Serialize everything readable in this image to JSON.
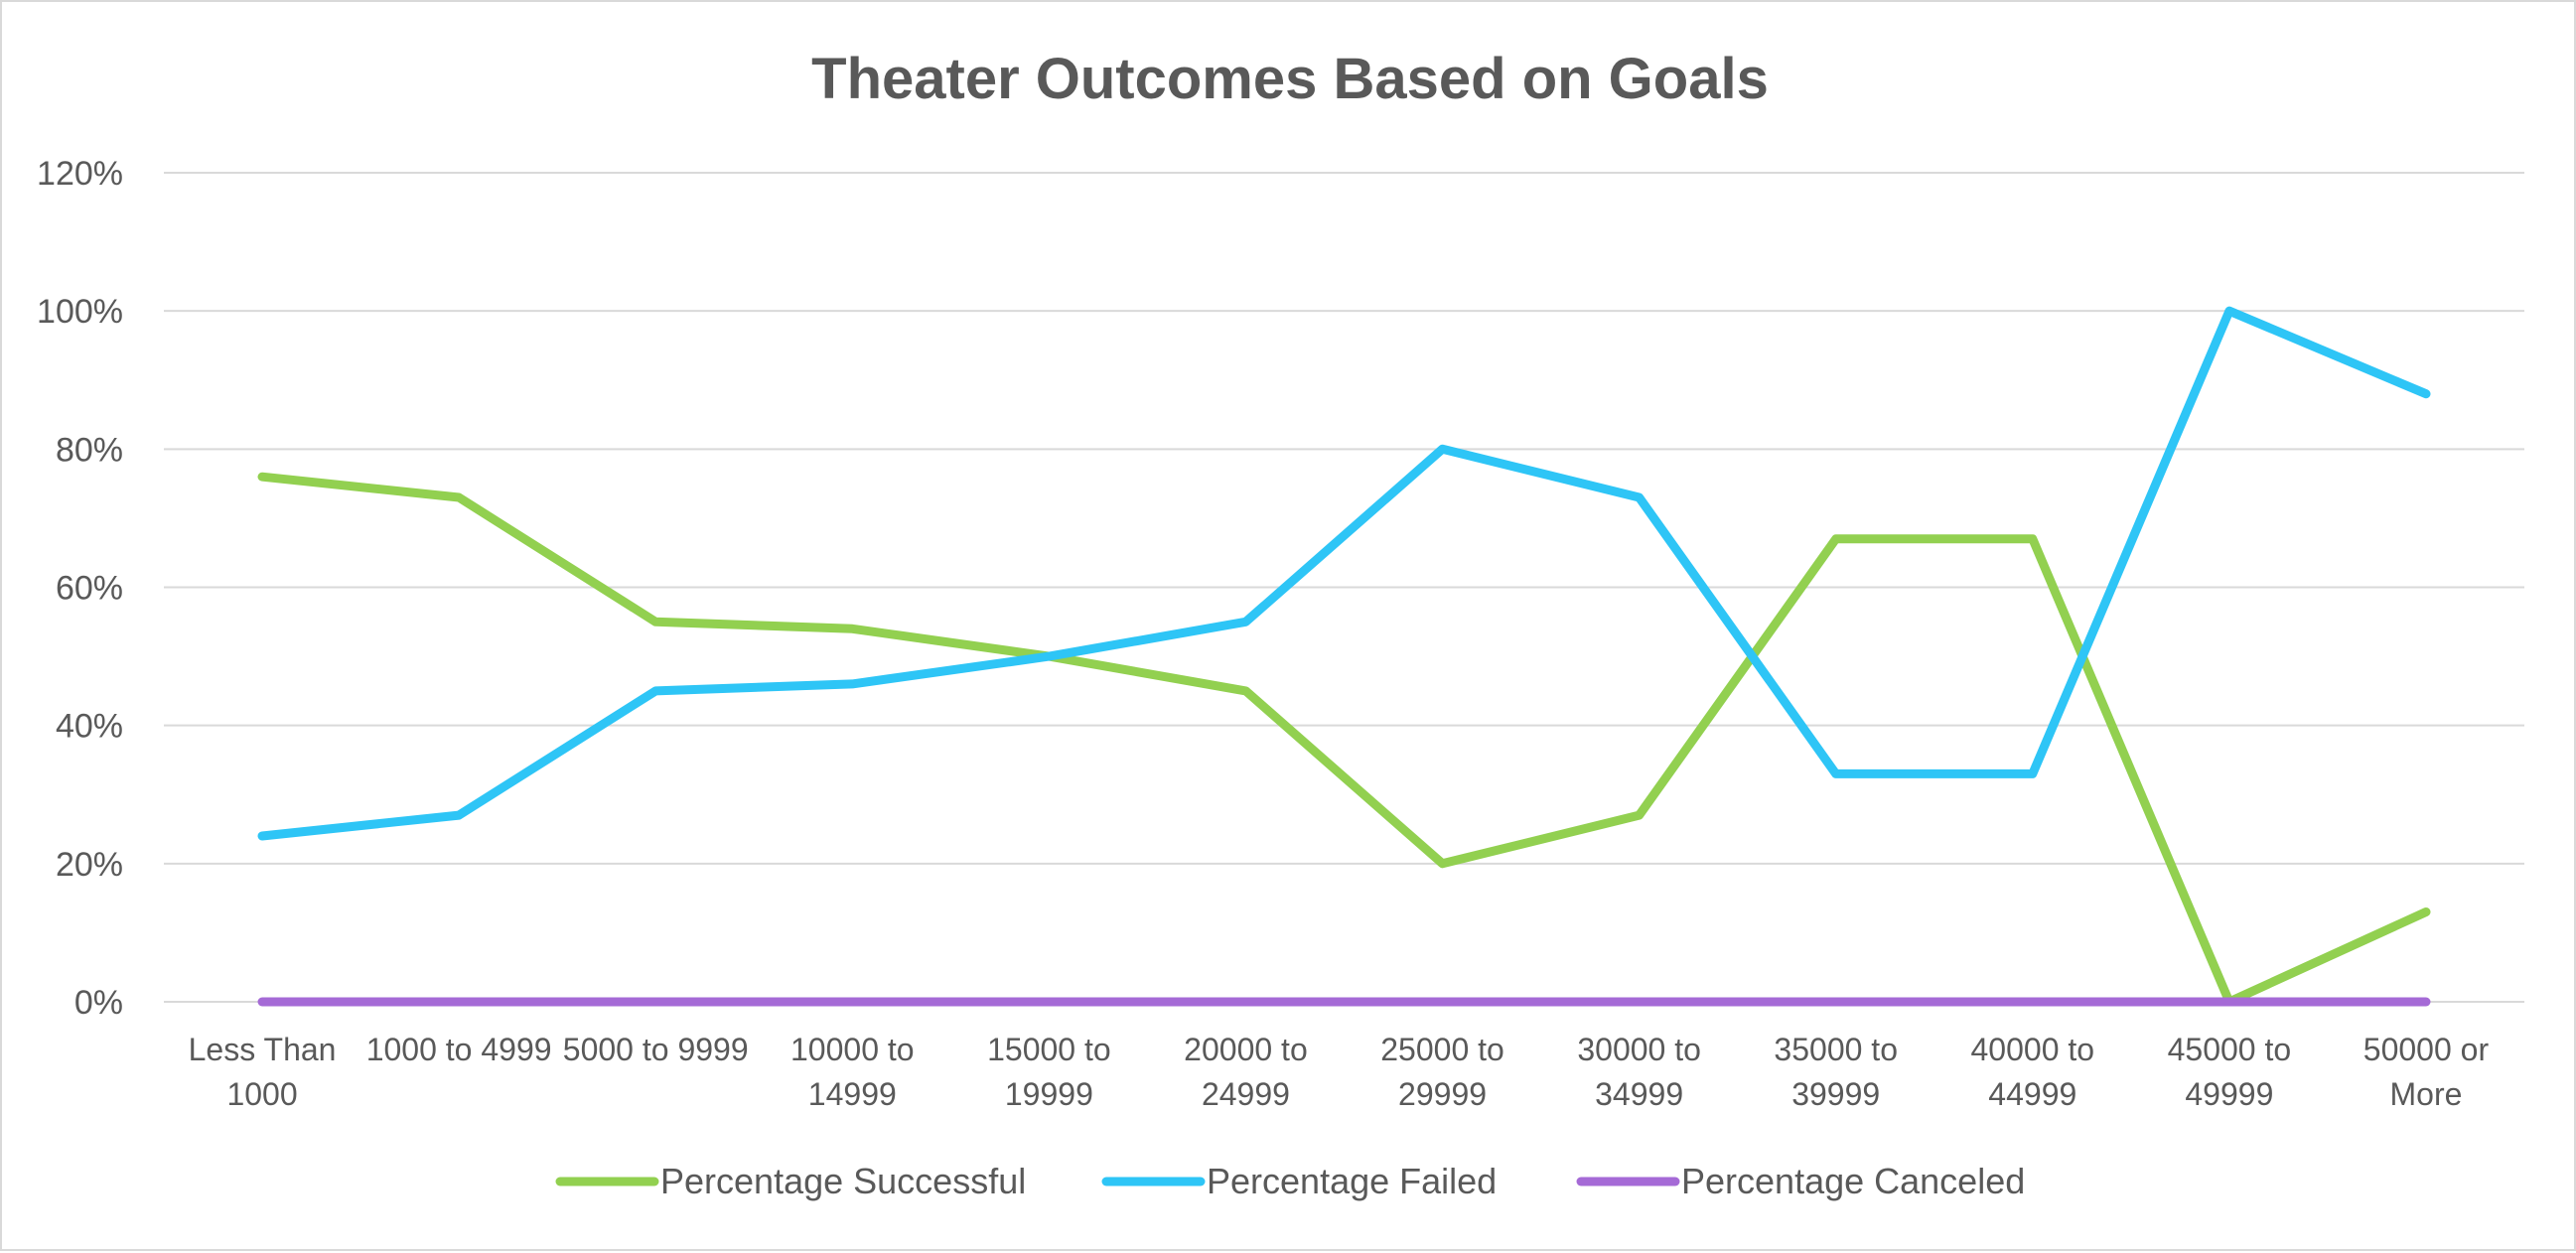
{
  "chart_data": {
    "type": "line",
    "title": "Theater Outcomes Based on Goals",
    "xlabel": "",
    "ylabel": "",
    "categories": [
      [
        "Less Than",
        "1000"
      ],
      [
        "1000 to 4999",
        ""
      ],
      [
        "5000 to 9999",
        ""
      ],
      [
        "10000 to",
        "14999"
      ],
      [
        "15000 to",
        "19999"
      ],
      [
        "20000 to",
        "24999"
      ],
      [
        "25000 to",
        "29999"
      ],
      [
        "30000 to",
        "34999"
      ],
      [
        "35000 to",
        "39999"
      ],
      [
        "40000 to",
        "44999"
      ],
      [
        "45000 to",
        "49999"
      ],
      [
        "50000 or",
        "More"
      ]
    ],
    "ylim": [
      0,
      120
    ],
    "yticks": [
      "0%",
      "20%",
      "40%",
      "60%",
      "80%",
      "100%",
      "120%"
    ],
    "grid": true,
    "legend_position": "bottom",
    "series": [
      {
        "name": "Percentage Successful",
        "color": "#92d050",
        "values": [
          76,
          73,
          55,
          54,
          50,
          45,
          20,
          27,
          67,
          67,
          0,
          13
        ]
      },
      {
        "name": "Percentage Failed",
        "color": "#2ec5f6",
        "values": [
          24,
          27,
          45,
          46,
          50,
          55,
          80,
          73,
          33,
          33,
          100,
          88
        ]
      },
      {
        "name": "Percentage Canceled",
        "color": "#a56ad6",
        "values": [
          0,
          0,
          0,
          0,
          0,
          0,
          0,
          0,
          0,
          0,
          0,
          0
        ]
      }
    ]
  }
}
